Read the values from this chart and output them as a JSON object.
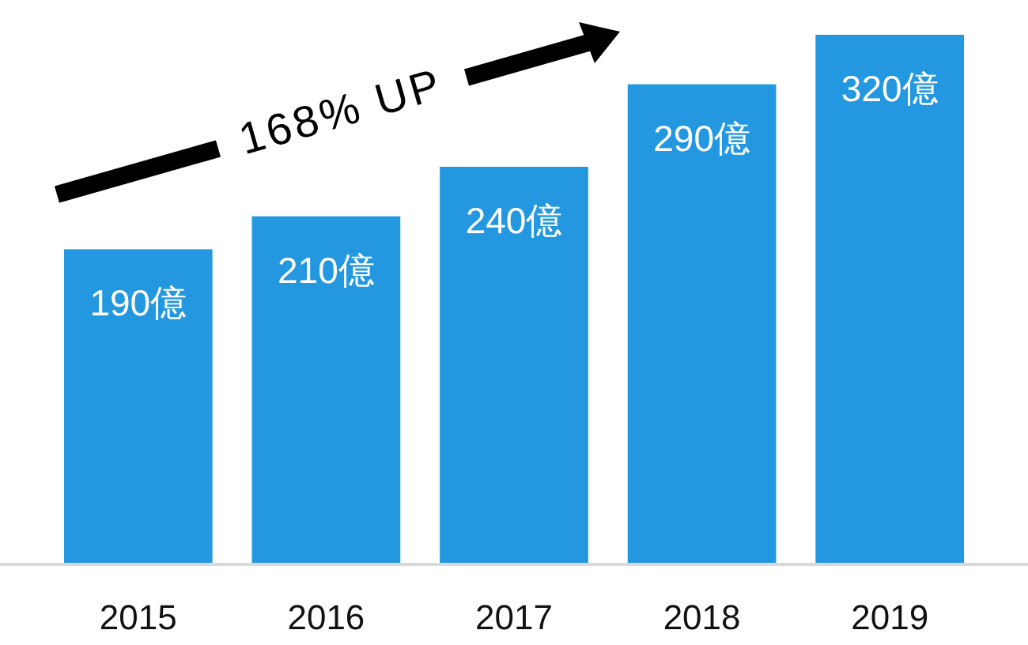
{
  "chart_data": {
    "type": "bar",
    "categories": [
      "2015",
      "2016",
      "2017",
      "2018",
      "2019"
    ],
    "values": [
      190,
      210,
      240,
      290,
      320
    ],
    "value_labels": [
      "190億",
      "210億",
      "240億",
      "290億",
      "320億"
    ],
    "color": "#2398e0",
    "annotations": [
      "168% UP"
    ]
  }
}
